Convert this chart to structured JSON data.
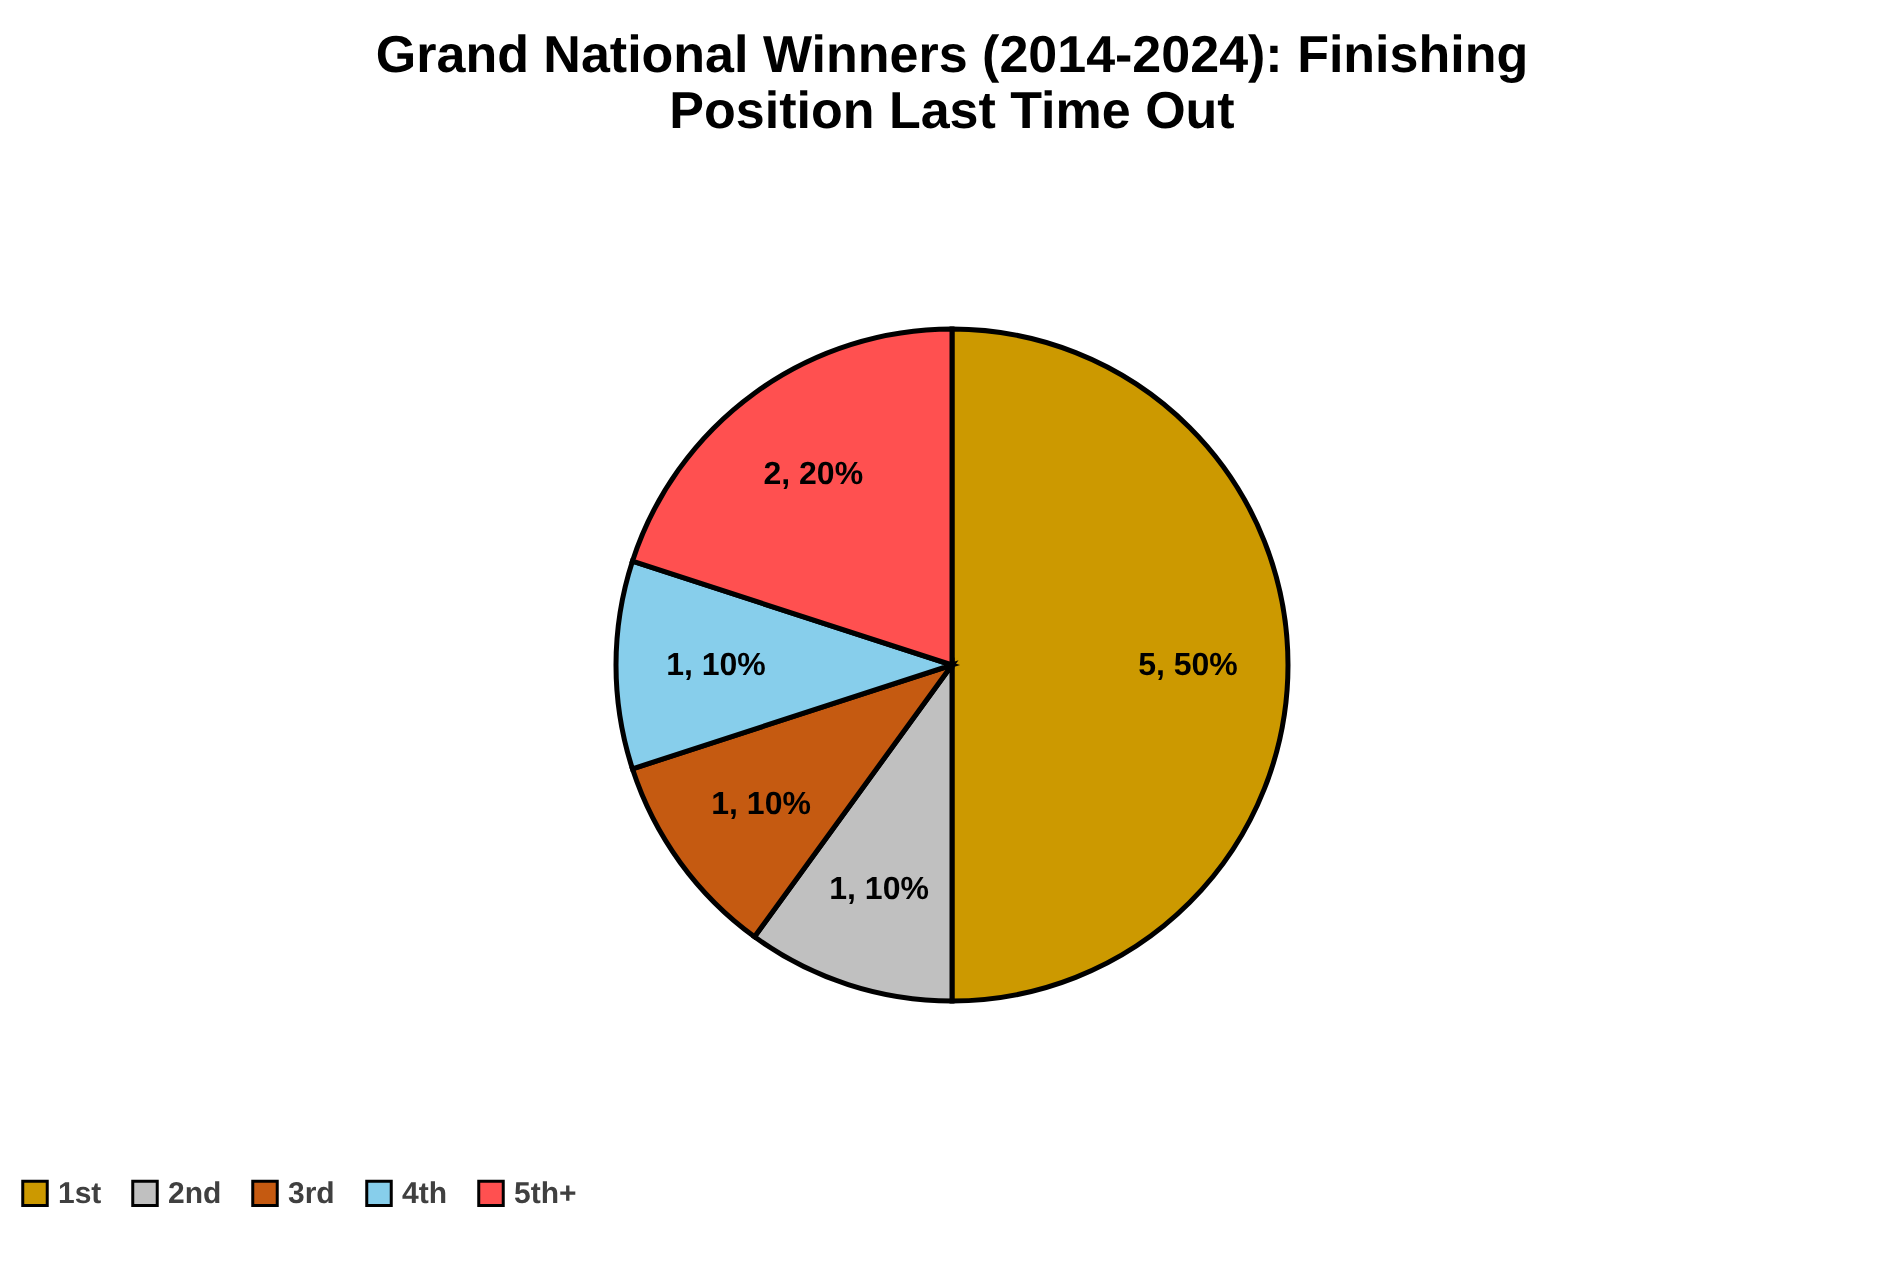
{
  "chart_data": {
    "type": "pie",
    "title": [
      "Grand National Winners (2014-2024): Finishing",
      "Position Last Time Out"
    ],
    "categories": [
      "1st",
      "2nd",
      "3rd",
      "4th",
      "5th+"
    ],
    "values": [
      5,
      1,
      1,
      1,
      2
    ],
    "colors": [
      "#cc9900",
      "#c0c0c0",
      "#c55a11",
      "#87ceeb",
      "#ff5050"
    ],
    "value_labels": [
      "5, 50%",
      "1, 10%",
      "1, 10%",
      "1, 10%",
      "2, 20%"
    ],
    "legend": "bottom"
  }
}
